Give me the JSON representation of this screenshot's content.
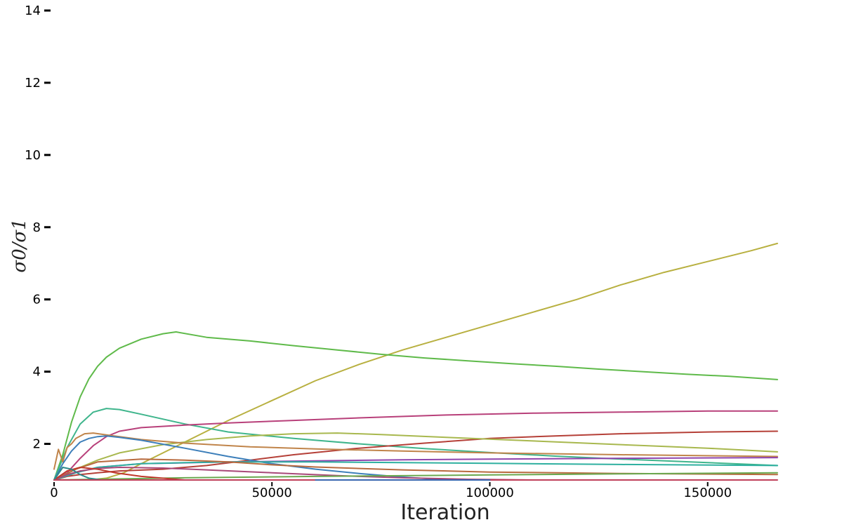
{
  "chart_data": {
    "type": "line",
    "title": "",
    "xlabel": "Iteration",
    "ylabel": "σ0/σ1",
    "xlim": [
      0,
      166000
    ],
    "ylim": [
      1,
      14
    ],
    "xticks": [
      0,
      50000,
      100000,
      150000
    ],
    "xtick_labels": [
      "0",
      "50000",
      "100000",
      "150000"
    ],
    "yticks": [
      2,
      4,
      6,
      8,
      10,
      12,
      14
    ],
    "ytick_labels": [
      "2",
      "4",
      "6",
      "8",
      "10",
      "12",
      "14"
    ],
    "grid": false,
    "legend": "none",
    "series": [
      {
        "color": "#b8b040",
        "x": [
          0,
          3000,
          8000,
          12000,
          16000,
          20000,
          25000,
          30000,
          40000,
          50000,
          60000,
          70000,
          80000,
          90000,
          100000,
          110000,
          120000,
          130000,
          140000,
          150000,
          160000,
          166000
        ],
        "y": [
          1.0,
          1.0,
          1.0,
          1.05,
          1.2,
          1.45,
          1.75,
          2.05,
          2.65,
          3.2,
          3.75,
          4.2,
          4.6,
          4.95,
          5.3,
          5.65,
          6.0,
          6.4,
          6.75,
          7.05,
          7.35,
          7.55
        ]
      },
      {
        "color": "#5fba4a",
        "x": [
          0,
          2000,
          4000,
          6000,
          8000,
          10000,
          12000,
          15000,
          20000,
          25000,
          28000,
          35000,
          45000,
          55000,
          65000,
          75000,
          85000,
          95000,
          105000,
          115000,
          125000,
          135000,
          145000,
          155000,
          166000
        ],
        "y": [
          1.0,
          1.7,
          2.6,
          3.3,
          3.8,
          4.15,
          4.4,
          4.65,
          4.9,
          5.05,
          5.1,
          4.95,
          4.85,
          4.72,
          4.6,
          4.48,
          4.38,
          4.3,
          4.22,
          4.15,
          4.07,
          4.0,
          3.93,
          3.87,
          3.78
        ]
      },
      {
        "color": "#3fb58c",
        "x": [
          0,
          3000,
          6000,
          9000,
          12000,
          15000,
          20000,
          30000,
          40000,
          55000,
          70000,
          85000,
          100000,
          115000,
          130000,
          150000,
          166000
        ],
        "y": [
          1.0,
          1.9,
          2.55,
          2.88,
          2.98,
          2.95,
          2.82,
          2.55,
          2.33,
          2.15,
          2.0,
          1.87,
          1.76,
          1.66,
          1.58,
          1.48,
          1.4
        ]
      },
      {
        "color": "#b8407a",
        "x": [
          0,
          3000,
          6000,
          9000,
          12000,
          15000,
          20000,
          30000,
          40000,
          55000,
          70000,
          90000,
          110000,
          130000,
          150000,
          166000
        ],
        "y": [
          1.0,
          1.2,
          1.6,
          1.95,
          2.2,
          2.35,
          2.45,
          2.52,
          2.58,
          2.65,
          2.72,
          2.8,
          2.85,
          2.88,
          2.91,
          2.91
        ]
      },
      {
        "color": "#b54038",
        "x": [
          0,
          3000,
          6000,
          10000,
          15000,
          25000,
          35000,
          45000,
          55000,
          70000,
          85000,
          100000,
          115000,
          130000,
          150000,
          166000
        ],
        "y": [
          1.0,
          1.1,
          1.15,
          1.2,
          1.25,
          1.3,
          1.4,
          1.55,
          1.7,
          1.88,
          2.02,
          2.15,
          2.22,
          2.28,
          2.33,
          2.35
        ]
      },
      {
        "color": "#a8b84e",
        "x": [
          0,
          5000,
          10000,
          15000,
          25000,
          35000,
          45000,
          55000,
          65000,
          75000,
          90000,
          110000,
          130000,
          150000,
          166000
        ],
        "y": [
          1.0,
          1.3,
          1.55,
          1.75,
          1.98,
          2.12,
          2.22,
          2.28,
          2.3,
          2.26,
          2.18,
          2.08,
          1.98,
          1.88,
          1.78
        ]
      },
      {
        "color": "#c0844a",
        "x": [
          0,
          1000,
          2000,
          3000,
          4000,
          5000,
          7000,
          9000,
          12000,
          20000,
          30000,
          45000,
          60000,
          80000,
          100000,
          130000,
          166000
        ],
        "y": [
          1.3,
          1.85,
          1.5,
          1.9,
          2.0,
          2.15,
          2.28,
          2.3,
          2.25,
          2.12,
          2.02,
          1.92,
          1.86,
          1.8,
          1.75,
          1.7,
          1.65
        ]
      },
      {
        "color": "#3d7fba",
        "x": [
          0,
          2000,
          4000,
          6000,
          8000,
          10000,
          12000,
          15000,
          20000,
          30000,
          40000,
          50000,
          60000,
          70000,
          80000,
          88000,
          95000,
          100000
        ],
        "y": [
          1.0,
          1.45,
          1.8,
          2.05,
          2.15,
          2.2,
          2.22,
          2.18,
          2.1,
          1.88,
          1.65,
          1.45,
          1.3,
          1.18,
          1.08,
          1.02,
          1.0,
          1.0
        ]
      },
      {
        "color": "#8e44ad",
        "x": [
          0,
          5000,
          10000,
          20000,
          40000,
          60000,
          80000,
          100000,
          130000,
          166000
        ],
        "y": [
          1.0,
          1.2,
          1.35,
          1.45,
          1.5,
          1.53,
          1.56,
          1.58,
          1.6,
          1.62
        ]
      },
      {
        "color": "#2fb0a0",
        "x": [
          0,
          5000,
          10000,
          20000,
          30000,
          40000,
          60000,
          80000,
          100000,
          130000,
          166000
        ],
        "y": [
          1.0,
          1.2,
          1.35,
          1.45,
          1.48,
          1.5,
          1.5,
          1.48,
          1.46,
          1.43,
          1.4
        ]
      },
      {
        "color": "#b86a3e",
        "x": [
          0,
          5000,
          10000,
          20000,
          30000,
          40000,
          50000,
          60000,
          80000,
          100000,
          130000,
          166000
        ],
        "y": [
          1.0,
          1.3,
          1.5,
          1.58,
          1.55,
          1.5,
          1.42,
          1.36,
          1.28,
          1.22,
          1.18,
          1.15
        ]
      },
      {
        "color": "#a84878",
        "x": [
          0,
          3000,
          6000,
          10000,
          15000,
          25000,
          35000,
          50000,
          65000,
          80000,
          95000,
          110000
        ],
        "y": [
          1.0,
          1.15,
          1.25,
          1.32,
          1.35,
          1.33,
          1.28,
          1.2,
          1.12,
          1.06,
          1.02,
          1.0
        ]
      },
      {
        "color": "#6aa84f",
        "x": [
          0,
          10000,
          30000,
          60000,
          100000,
          130000,
          166000
        ],
        "y": [
          1.0,
          1.02,
          1.06,
          1.1,
          1.14,
          1.17,
          1.2
        ]
      },
      {
        "color": "#c0392b",
        "x": [
          0,
          3000,
          6000,
          10000,
          14000,
          20000,
          30000
        ],
        "y": [
          1.0,
          1.25,
          1.35,
          1.3,
          1.2,
          1.1,
          1.0
        ]
      },
      {
        "color": "#2f8a8a",
        "x": [
          0,
          2000,
          4000,
          6000,
          8000,
          11000
        ],
        "y": [
          1.0,
          1.35,
          1.3,
          1.15,
          1.05,
          1.0
        ]
      },
      {
        "color": "#c0405a",
        "x": [
          0,
          166000
        ],
        "y": [
          1.0,
          1.0
        ]
      },
      {
        "color": "#3a68b0",
        "x": [
          60000,
          80000,
          100000
        ],
        "y": [
          1.0,
          1.0,
          1.0
        ]
      }
    ]
  }
}
